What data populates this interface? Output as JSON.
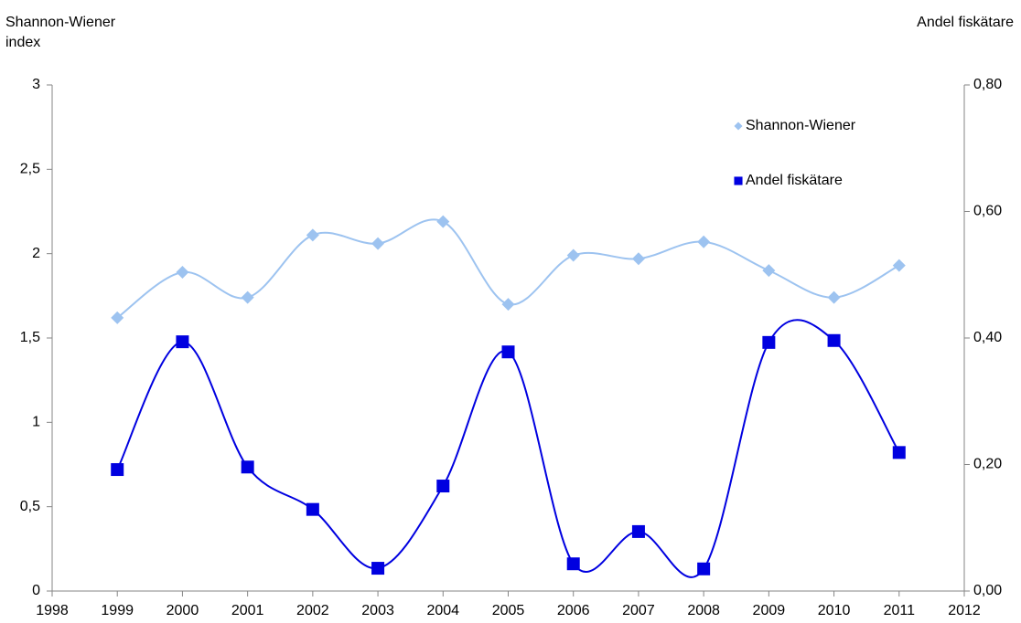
{
  "chart_data": {
    "type": "line",
    "y_label": "Shannon-Wiener index",
    "y2_label": "Andel fiskätare",
    "x": [
      1999,
      2000,
      2001,
      2002,
      2003,
      2004,
      2005,
      2006,
      2007,
      2008,
      2009,
      2010,
      2011
    ],
    "series": [
      {
        "name": "Shannon-Wiener",
        "color": "#9dc3f0",
        "marker": "diamond",
        "axis": "y",
        "values": [
          1.62,
          1.89,
          1.74,
          2.11,
          2.06,
          2.19,
          1.7,
          1.99,
          1.97,
          2.07,
          1.9,
          1.74,
          1.93
        ]
      },
      {
        "name": "Andel fiskätare",
        "color": "#0000e0",
        "marker": "square",
        "axis": "y2",
        "values": [
          0.192,
          0.394,
          0.196,
          0.129,
          0.036,
          0.166,
          0.378,
          0.043,
          0.094,
          0.035,
          0.393,
          0.396,
          0.219
        ]
      }
    ],
    "xlim": [
      1998,
      2012
    ],
    "xticks": [
      1998,
      1999,
      2000,
      2001,
      2002,
      2003,
      2004,
      2005,
      2006,
      2007,
      2008,
      2009,
      2010,
      2011,
      2012
    ],
    "ylim": [
      0,
      3
    ],
    "yticks": [
      0,
      {
        "value": 0.5,
        "label": "0,5"
      },
      1,
      {
        "value": 1.5,
        "label": "1,5"
      },
      2,
      {
        "value": 2.5,
        "label": "2,5"
      },
      3
    ],
    "y2lim": [
      0,
      0.8
    ],
    "y2ticks": [
      {
        "value": 0,
        "label": "0,00"
      },
      {
        "value": 0.2,
        "label": "0,20"
      },
      {
        "value": 0.4,
        "label": "0,40"
      },
      {
        "value": 0.6,
        "label": "0,60"
      },
      {
        "value": 0.8,
        "label": "0,80"
      }
    ],
    "smooth": true,
    "grid": false,
    "legend": "upper right"
  }
}
